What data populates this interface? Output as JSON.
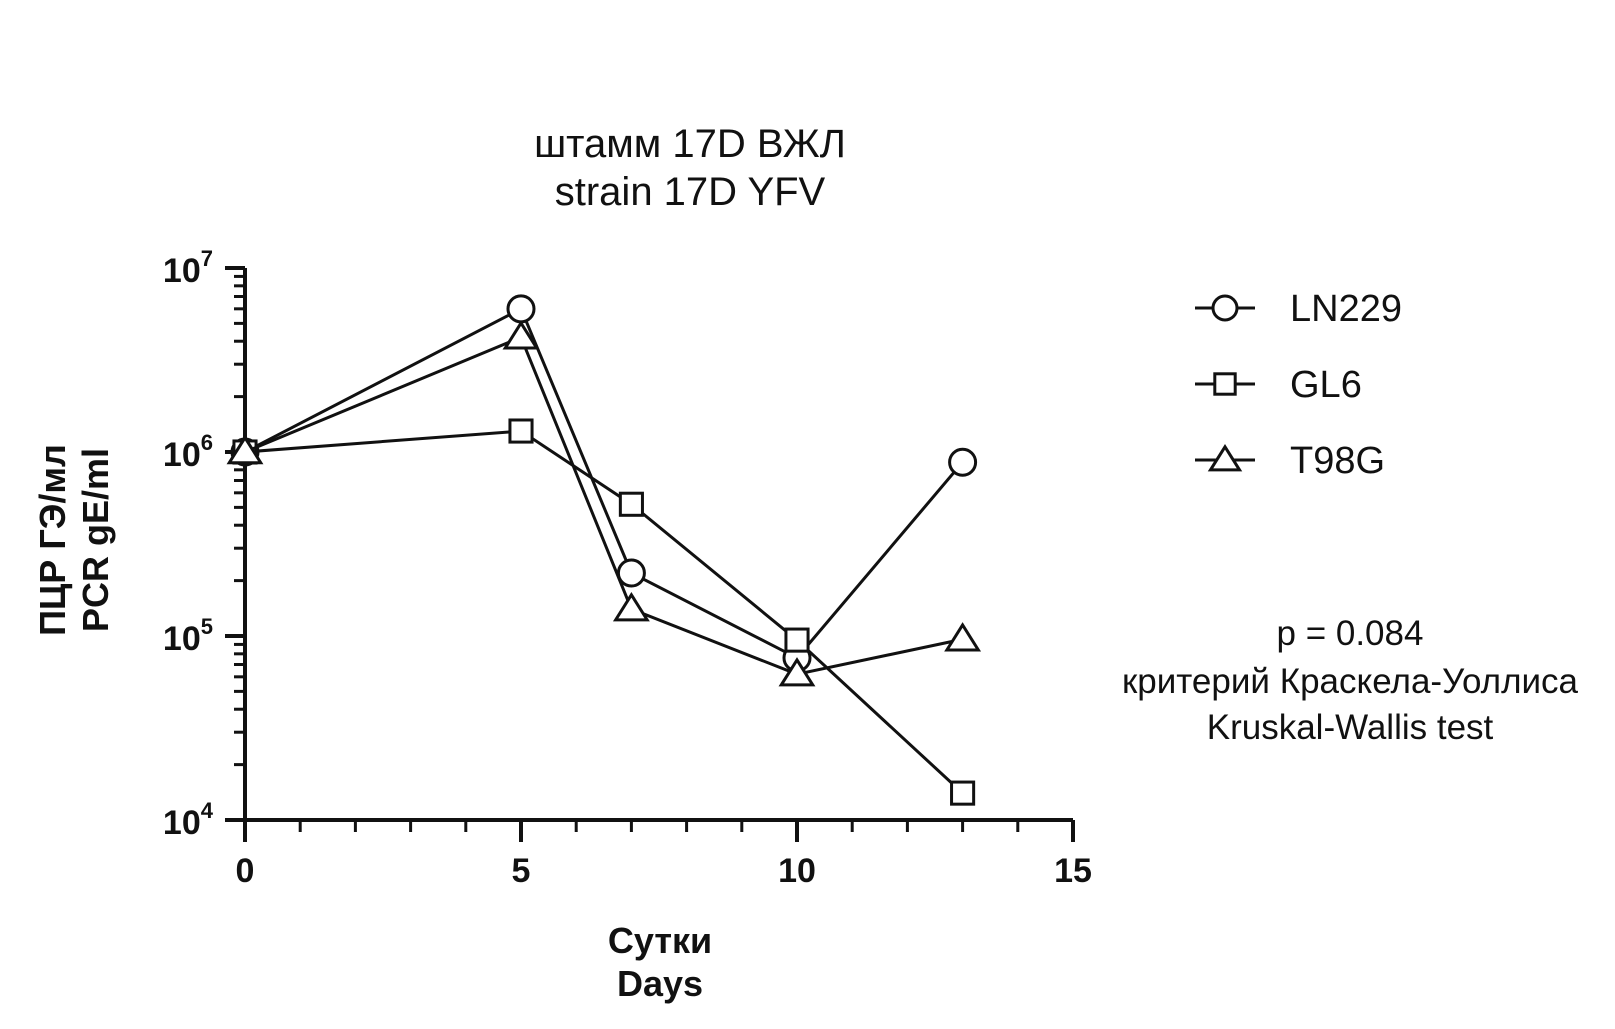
{
  "chart_data": {
    "type": "line",
    "title": [
      "штамм 17D ВЖЛ",
      "strain 17D YFV"
    ],
    "ylabel": [
      "ПЦР ГЭ/мл",
      "PCR gE/ml"
    ],
    "xlabel": [
      "Сутки",
      "Days"
    ],
    "xlim": [
      0,
      15
    ],
    "ylim": [
      10000,
      10000000
    ],
    "yscale": "log",
    "x_ticks": [
      0,
      5,
      10,
      15
    ],
    "x_tick_labels": [
      "0",
      "5",
      "10",
      "15"
    ],
    "y_ticks": [
      10000,
      100000,
      1000000,
      10000000
    ],
    "y_tick_labels": [
      {
        "base": "10",
        "exp": "4"
      },
      {
        "base": "10",
        "exp": "5"
      },
      {
        "base": "10",
        "exp": "6"
      },
      {
        "base": "10",
        "exp": "7"
      }
    ],
    "grid": false,
    "legend_position": "right",
    "series": [
      {
        "name": "LN229",
        "marker": "circle",
        "x": [
          0,
          5,
          7,
          10,
          13
        ],
        "y": [
          1000000,
          6000000,
          220000,
          76000,
          880000
        ]
      },
      {
        "name": "GL6",
        "marker": "square",
        "x": [
          0,
          5,
          7,
          10,
          13
        ],
        "y": [
          1000000,
          1300000,
          520000,
          95000,
          14000
        ]
      },
      {
        "name": "T98G",
        "marker": "triangle",
        "x": [
          0,
          5,
          7,
          10,
          13
        ],
        "y": [
          1000000,
          4200000,
          140000,
          62000,
          96000
        ]
      }
    ],
    "annotation": [
      "p = 0.084",
      "критерий Краскела-Уоллиса",
      "Kruskal-Wallis test"
    ],
    "colors": {
      "line": "#111111",
      "marker_fill": "#ffffff",
      "background": "#ffffff"
    }
  }
}
